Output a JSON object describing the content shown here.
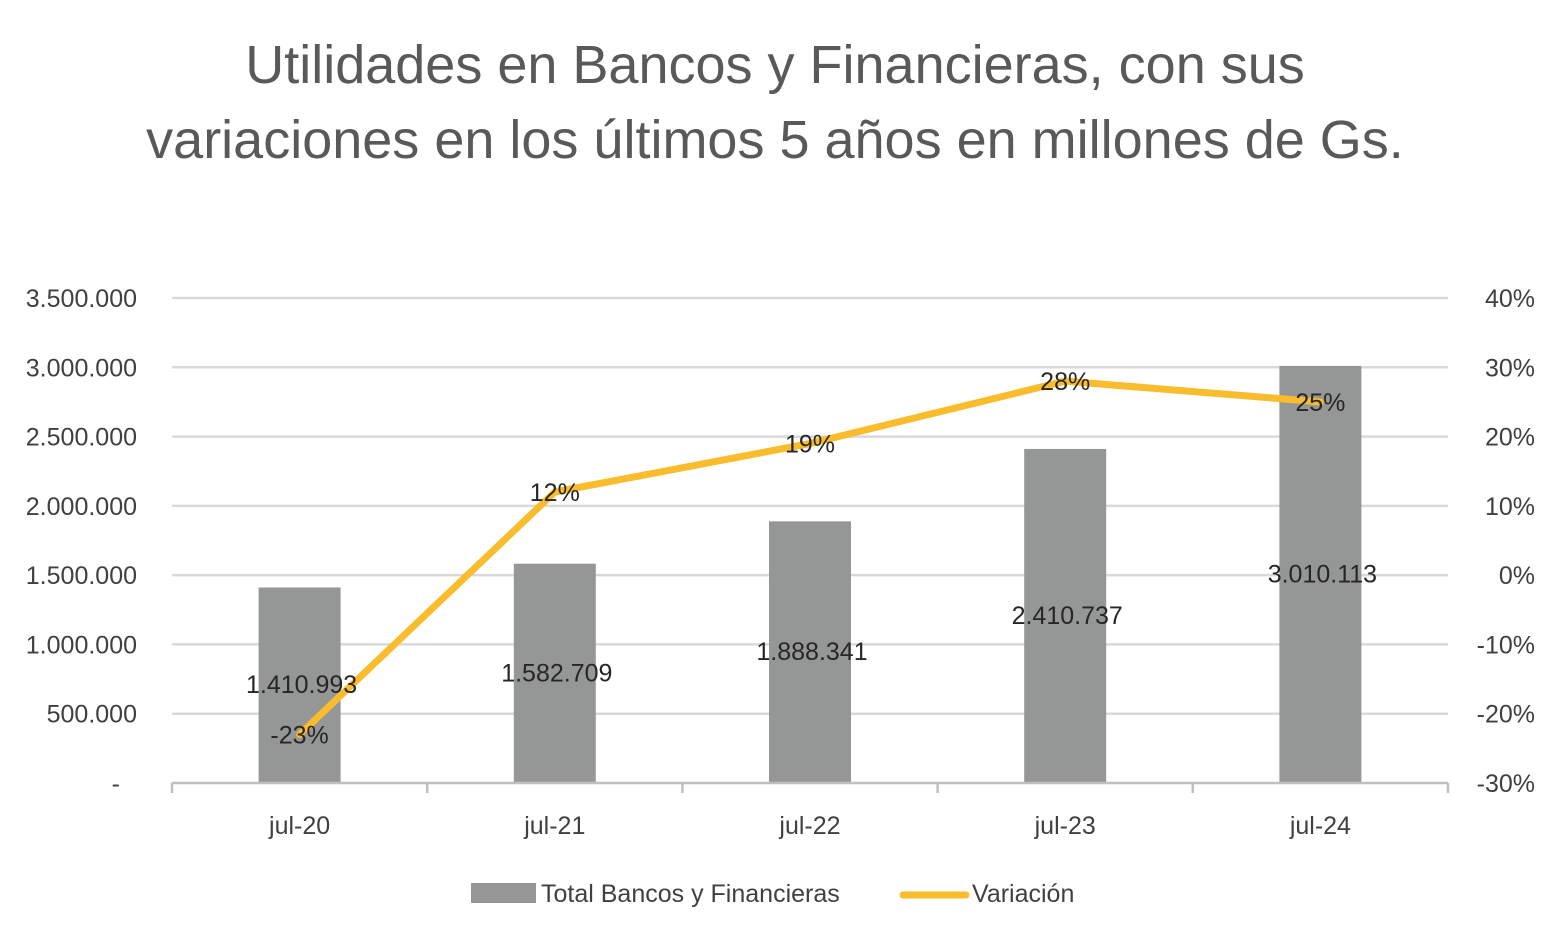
{
  "chart_data": {
    "type": "bar",
    "title": "Utilidades en Bancos y Financieras, con sus variaciones en los últimos 5 años en millones de Gs.",
    "categories": [
      "jul-20",
      "jul-21",
      "jul-22",
      "jul-23",
      "jul-24"
    ],
    "series": [
      {
        "name": "Total Bancos y Financieras",
        "type": "bar",
        "axis": "left",
        "color": "#959796",
        "values": [
          1410993,
          1582709,
          1888341,
          2410737,
          3010113
        ],
        "labels": [
          "1.410.993",
          "1.582.709",
          "1.888.341",
          "2.410.737",
          "3.010.113"
        ]
      },
      {
        "name": "Variación",
        "type": "line",
        "axis": "right",
        "color": "#F9BC2D",
        "values": [
          -23,
          12,
          19,
          28,
          25
        ],
        "labels": [
          "-23%",
          "12%",
          "19%",
          "28%",
          "25%"
        ]
      }
    ],
    "y_left": {
      "ylim": [
        0,
        3500000
      ],
      "ticks": [
        0,
        500000,
        1000000,
        1500000,
        2000000,
        2500000,
        3000000,
        3500000
      ],
      "tick_labels": [
        "-",
        "500.000",
        "1.000.000",
        "1.500.000",
        "2.000.000",
        "2.500.000",
        "3.000.000",
        "3.500.000"
      ]
    },
    "y_right": {
      "ylim": [
        -30,
        40
      ],
      "ticks": [
        -30,
        -20,
        -10,
        0,
        10,
        20,
        30,
        40
      ],
      "tick_labels": [
        "-30%",
        "-20%",
        "-10%",
        "0%",
        "10%",
        "20%",
        "30%",
        "40%"
      ]
    },
    "grid": true,
    "legend_position": "bottom",
    "colors": {
      "grid": "#D9D9D9",
      "axis": "#BFBFBF",
      "title": "#595959"
    }
  }
}
